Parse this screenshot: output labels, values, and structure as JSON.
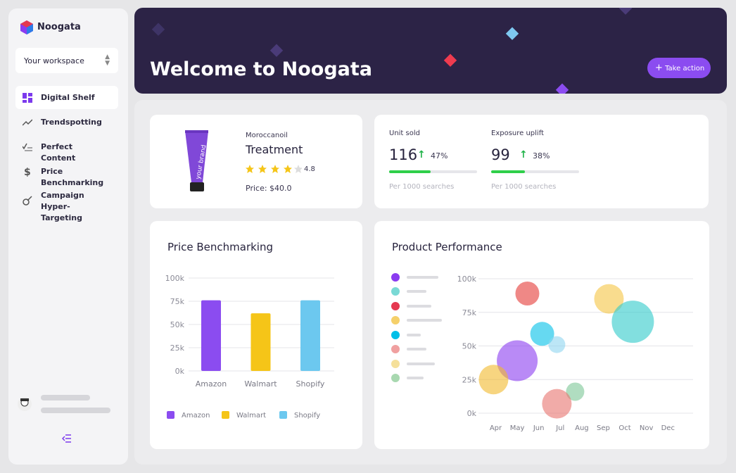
{
  "sidebar": {
    "brand": "Noogata",
    "workspace": "Your workspace",
    "nav": [
      "Digital Shelf",
      "Trendspotting",
      "Perfect Content",
      "Price Benchmarking",
      "Campaign Hyper-Targeting"
    ]
  },
  "header": {
    "title": "Welcome to Noogata",
    "action": "Take action"
  },
  "product": {
    "brand": "Moroccanoil",
    "name": "Treatment",
    "rating": 4.8,
    "price": "Price: $40.0",
    "package_text": "your brand"
  },
  "metrics": [
    {
      "label": "Unit sold",
      "value": 116,
      "change": 47,
      "change_label": "47%",
      "note": "Per 1000 searches"
    },
    {
      "label": "Exposure uplift",
      "value": 99,
      "change": 38,
      "change_label": "38%",
      "note": "Per 1000 searches"
    }
  ],
  "price_chart": {
    "type": "bar",
    "title": "Price Benchmarking",
    "categories": [
      "Amazon",
      "Walmart",
      "Shopify"
    ],
    "values": [
      76000,
      62000,
      76000
    ],
    "colors": [
      "#8b4cf0",
      "#f5c518",
      "#6cc8ef"
    ],
    "ylim": [
      0,
      100000
    ],
    "yticks": [
      {
        "value": 0,
        "label": "0k"
      },
      {
        "value": 25000,
        "label": "25k"
      },
      {
        "value": 50000,
        "label": "50k"
      },
      {
        "value": 75000,
        "label": "75k"
      },
      {
        "value": 100000,
        "label": "100k"
      }
    ],
    "grid": true,
    "legend": "bottom"
  },
  "performance_chart": {
    "type": "scatter",
    "title": "Product Performance",
    "x": [
      5.47,
      9.26,
      10.37,
      6.16,
      6.84,
      5.0,
      3.9,
      7.69,
      6.84
    ],
    "values": [
      89000,
      85000,
      68000,
      59000,
      51000,
      39000,
      25000,
      16000,
      7000
    ],
    "sizes": [
      17,
      21,
      30,
      17,
      12,
      29,
      21,
      13,
      21
    ],
    "colors": [
      "#e53935",
      "#f5c542",
      "#2ec9c9",
      "#00bfe8",
      "#8fd6f0",
      "#8b3cf0",
      "#f2b92b",
      "#7cc796",
      "#e8736e"
    ],
    "xlim": [
      3.2,
      13.2
    ],
    "xticks": [
      {
        "value": 4,
        "label": "Apr"
      },
      {
        "value": 5,
        "label": "May"
      },
      {
        "value": 6,
        "label": "Jun"
      },
      {
        "value": 7,
        "label": "Jul"
      },
      {
        "value": 8,
        "label": "Aug"
      },
      {
        "value": 9,
        "label": "Sep"
      },
      {
        "value": 10,
        "label": "Oct"
      },
      {
        "value": 11,
        "label": "Nov"
      },
      {
        "value": 12,
        "label": "Dec"
      }
    ],
    "ylim": [
      0,
      100000
    ],
    "yticks": [
      {
        "value": 0,
        "label": "0k"
      },
      {
        "value": 25000,
        "label": "25k"
      },
      {
        "value": 50000,
        "label": "50k"
      },
      {
        "value": 75000,
        "label": "75k"
      },
      {
        "value": 100000,
        "label": "100k"
      }
    ],
    "grid": true
  }
}
